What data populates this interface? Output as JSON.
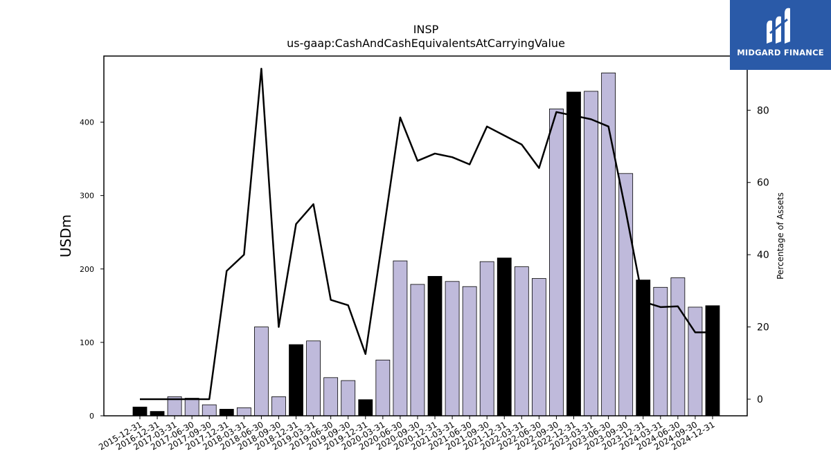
{
  "logo": {
    "text": "MIDGARD FINANCE"
  },
  "chart_data": {
    "type": "bar",
    "title": "INSP",
    "subtitle": "us-gaap:CashAndCashEquivalentsAtCarryingValue",
    "ylabel": "USDm",
    "y2label": "Percentage of Assets",
    "ylim": [
      0,
      490
    ],
    "y2lim": [
      -4.6,
      95
    ],
    "yticks": [
      0,
      100,
      200,
      300,
      400
    ],
    "y2ticks": [
      0,
      20,
      40,
      60,
      80
    ],
    "colors": {
      "annual": "#000000",
      "quarter": "#bfbadb",
      "line": "#000000"
    },
    "categories": [
      "2015-12-31",
      "2016-12-31",
      "2017-03-31",
      "2017-06-30",
      "2017-09-30",
      "2017-12-31",
      "2018-03-31",
      "2018-06-30",
      "2018-09-30",
      "2018-12-31",
      "2019-03-31",
      "2019-06-30",
      "2019-09-30",
      "2019-12-31",
      "2020-03-31",
      "2020-06-30",
      "2020-09-30",
      "2020-12-31",
      "2021-03-31",
      "2021-06-30",
      "2021-09-30",
      "2021-12-31",
      "2022-03-31",
      "2022-06-30",
      "2022-09-30",
      "2022-12-31",
      "2023-03-31",
      "2023-06-30",
      "2023-09-30",
      "2023-12-31",
      "2024-03-31",
      "2024-06-30",
      "2024-09-30",
      "2024-12-31"
    ],
    "series": [
      {
        "kind": "bar",
        "axis": "left",
        "values": [
          12,
          6,
          26,
          24,
          15,
          9,
          11,
          121,
          26,
          97,
          102,
          52,
          48,
          22,
          76,
          211,
          179,
          190,
          183,
          176,
          210,
          215,
          203,
          187,
          418,
          441,
          442,
          467,
          330,
          185,
          175,
          188,
          148,
          150
        ],
        "annual": [
          true,
          true,
          false,
          false,
          false,
          true,
          false,
          false,
          false,
          true,
          false,
          false,
          false,
          true,
          false,
          false,
          false,
          true,
          false,
          false,
          false,
          true,
          false,
          false,
          false,
          true,
          false,
          false,
          false,
          true,
          false,
          false,
          false,
          true
        ]
      },
      {
        "kind": "line",
        "axis": "right",
        "values": [
          0,
          0,
          0,
          0,
          0,
          35.5,
          40,
          91.5,
          20,
          48.5,
          54,
          27.5,
          26,
          12.5,
          45,
          78,
          66,
          68,
          67,
          65,
          75.5,
          73,
          70.5,
          64,
          79.5,
          78.5,
          77.5,
          75.5,
          52,
          27,
          25.5,
          25.7,
          18.5,
          18.5
        ]
      }
    ]
  }
}
